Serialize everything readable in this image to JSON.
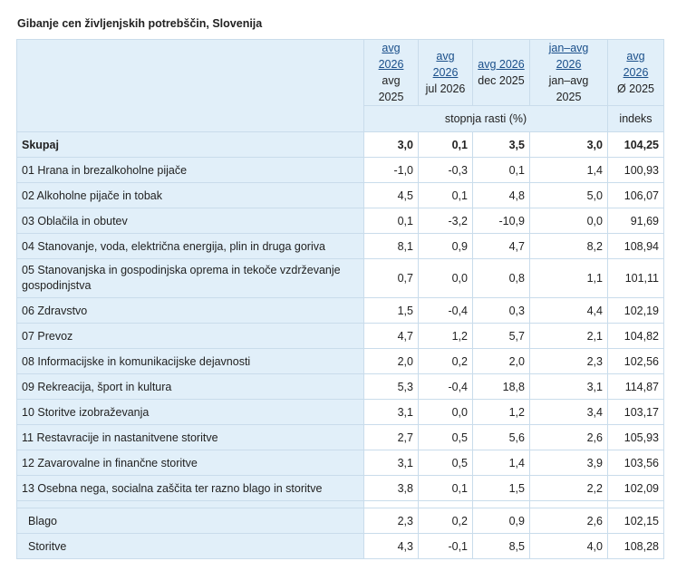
{
  "title": "Gibanje cen življenjskih potrebščin, Slovenija",
  "columns": [
    {
      "top": "avg 2026",
      "bottom": "avg 2025"
    },
    {
      "top": "avg 2026",
      "bottom": "jul 2026"
    },
    {
      "top": "avg 2026",
      "bottom": "dec 2025"
    },
    {
      "top": "jan–avg 2026",
      "bottom": "jan–avg 2025"
    },
    {
      "top": "avg 2026",
      "bottom": "Ø 2025"
    }
  ],
  "subheaders": {
    "rate": "stopnja rasti (%)",
    "index": "indeks"
  },
  "rows": [
    {
      "label": "Skupaj",
      "values": [
        "3,0",
        "0,1",
        "3,5",
        "3,0",
        "104,25"
      ]
    },
    {
      "label": "01 Hrana in brezalkoholne pijače",
      "values": [
        "-1,0",
        "-0,3",
        "0,1",
        "1,4",
        "100,93"
      ]
    },
    {
      "label": "02 Alkoholne pijače in tobak",
      "values": [
        "4,5",
        "0,1",
        "4,8",
        "5,0",
        "106,07"
      ]
    },
    {
      "label": "03 Oblačila in obutev",
      "values": [
        "0,1",
        "-3,2",
        "-10,9",
        "0,0",
        "91,69"
      ]
    },
    {
      "label": "04 Stanovanje, voda, električna energija, plin in druga goriva",
      "values": [
        "8,1",
        "0,9",
        "4,7",
        "8,2",
        "108,94"
      ]
    },
    {
      "label": "05 Stanovanjska in gospodinjska oprema in tekoče vzdrževanje gospodinjstva",
      "values": [
        "0,7",
        "0,0",
        "0,8",
        "1,1",
        "101,11"
      ]
    },
    {
      "label": "06 Zdravstvo",
      "values": [
        "1,5",
        "-0,4",
        "0,3",
        "4,4",
        "102,19"
      ]
    },
    {
      "label": "07 Prevoz",
      "values": [
        "4,7",
        "1,2",
        "5,7",
        "2,1",
        "104,82"
      ]
    },
    {
      "label": "08 Informacijske in komunikacijske dejavnosti",
      "values": [
        "2,0",
        "0,2",
        "2,0",
        "2,3",
        "102,56"
      ]
    },
    {
      "label": "09 Rekreacija, šport in kultura",
      "values": [
        "5,3",
        "-0,4",
        "18,8",
        "3,1",
        "114,87"
      ]
    },
    {
      "label": "10 Storitve izobraževanja",
      "values": [
        "3,1",
        "0,0",
        "1,2",
        "3,4",
        "103,17"
      ]
    },
    {
      "label": "11 Restavracije in nastanitvene storitve",
      "values": [
        "2,7",
        "0,5",
        "5,6",
        "2,6",
        "105,93"
      ]
    },
    {
      "label": "12 Zavarovalne in finančne storitve",
      "values": [
        "3,1",
        "0,5",
        "1,4",
        "3,9",
        "103,56"
      ]
    },
    {
      "label": "13 Osebna nega, socialna zaščita ter razno blago in storitve",
      "values": [
        "3,8",
        "0,1",
        "1,5",
        "2,2",
        "102,09"
      ]
    },
    {
      "label": "Blago",
      "values": [
        "2,3",
        "0,2",
        "0,9",
        "2,6",
        "102,15"
      ]
    },
    {
      "label": "Storitve",
      "values": [
        "4,3",
        "-0,1",
        "8,5",
        "4,0",
        "108,28"
      ]
    }
  ],
  "colors": {
    "header_bg": "#e1eff9",
    "border": "#c9dceb",
    "link": "#1a4f8a"
  }
}
